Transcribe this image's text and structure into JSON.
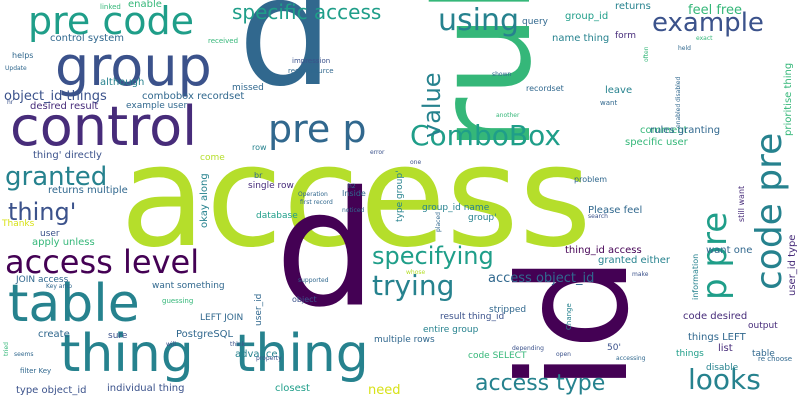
{
  "background": "#ffffff",
  "palette": {
    "dark_purple": "#440154",
    "purple": "#472c7a",
    "indigo": "#3b528b",
    "blue": "#31688e",
    "teal": "#26828e",
    "teal_green": "#1f9e89",
    "green": "#35b779",
    "light_green": "#6ece58",
    "lime": "#b5de2b",
    "yellow": "#d8e219"
  },
  "words": [
    "access",
    "rule",
    "id",
    "p",
    "p",
    "thing",
    "thing",
    "table",
    "control",
    "group",
    "pre code",
    "pre p",
    "code pre",
    "p pre",
    "access level",
    "ComboBox",
    "using",
    "example",
    "specific access",
    "value",
    "looks",
    "access type",
    "granted",
    "thing'",
    "specifying",
    "trying",
    "access object_id",
    "feel free",
    "group_id",
    "returns",
    "enable",
    "linked",
    "object_id things",
    "control system",
    "combobox recordset",
    "desired result",
    "example user",
    "although",
    "impression",
    "recordsource",
    "received",
    "query",
    "name thing",
    "form",
    "recordset",
    "leave",
    "comment",
    "rules granting",
    "specific user",
    "helps",
    "Update",
    "hr",
    "missed",
    "row",
    "br",
    "single row",
    "come",
    "okay along",
    "database",
    "first record",
    "Operation",
    "Inside",
    "h2",
    "noticed",
    "error",
    "one",
    "problem",
    "Please feel",
    "group_id name",
    "group'",
    "type group'",
    "thing' directly",
    "returns multiple",
    "apply unless",
    "user",
    "Thanks",
    "JOIN access",
    "Key amp",
    "want something",
    "guessing",
    "LEFT JOIN",
    "user_id",
    "supported",
    "object",
    "thing_id access",
    "granted either",
    "want one",
    "list",
    "information",
    "still want",
    "user_id type",
    "prioritise thing",
    "code desired",
    "output",
    "things LEFT",
    "table",
    "re choose",
    "disable",
    "things",
    "stripped",
    "result thing_id",
    "entire group",
    "multiple rows",
    "code SELECT",
    "50'",
    "Change",
    "depending",
    "open",
    "accessing",
    "create",
    "sure",
    "PostgreSQL",
    "advance",
    "think",
    "will",
    "individual thing",
    "closest",
    "need",
    "type object_id",
    "filter Key",
    "seems",
    "tried",
    "make",
    "whose",
    "shown",
    "another",
    "often",
    "held",
    "want",
    "exact",
    "enabled disabled",
    "search",
    "placed",
    "property"
  ]
}
